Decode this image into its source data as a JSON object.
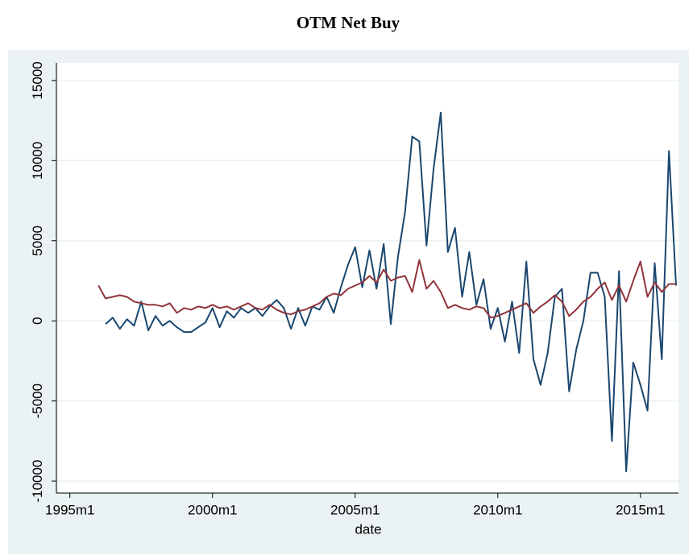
{
  "chart_data": {
    "type": "line",
    "title": "OTM Net Buy",
    "xlabel": "date",
    "x": [
      432,
      435,
      438,
      441,
      444,
      447,
      450,
      453,
      456,
      459,
      462,
      465,
      468,
      471,
      474,
      477,
      480,
      483,
      486,
      489,
      492,
      495,
      498,
      501,
      504,
      507,
      510,
      513,
      516,
      519,
      522,
      525,
      528,
      531,
      534,
      537,
      540,
      543,
      546,
      549,
      552,
      555,
      558,
      561,
      564,
      567,
      570,
      573,
      576,
      579,
      582,
      585,
      588,
      591,
      594,
      597,
      600,
      603,
      606,
      609,
      612,
      615,
      618,
      621,
      624,
      627,
      630,
      633,
      636,
      639,
      642,
      645,
      648,
      651,
      654,
      657,
      660,
      663,
      666,
      669,
      672,
      675
    ],
    "series": [
      {
        "color": "#1a476f",
        "values": [
          null,
          -200,
          200,
          -500,
          100,
          -300,
          1200,
          -600,
          300,
          -300,
          0,
          -400,
          -700,
          -700,
          -400,
          -100,
          800,
          -400,
          600,
          200,
          800,
          500,
          800,
          300,
          900,
          1300,
          800,
          -500,
          800,
          -300,
          900,
          700,
          1500,
          500,
          2100,
          3500,
          4600,
          2100,
          4400,
          2000,
          4800,
          -200,
          4000,
          6800,
          11500,
          11200,
          4700,
          9500,
          13000,
          4300,
          5800,
          1500,
          4300,
          1000,
          2600,
          -500,
          800,
          -1300,
          1200,
          -2000,
          3700,
          -2400,
          -4000,
          -2000,
          1500,
          2000,
          -4400,
          -1800,
          0,
          3000,
          3000,
          1500,
          -7500,
          3100,
          -9400,
          -2600,
          -4000,
          -5600,
          3600,
          -2400,
          10600,
          2200
        ]
      },
      {
        "color": "#90353b",
        "values": [
          2200,
          1400,
          1500,
          1600,
          1500,
          1200,
          1100,
          1000,
          1000,
          900,
          1100,
          500,
          800,
          700,
          900,
          800,
          1000,
          800,
          900,
          700,
          900,
          1100,
          800,
          700,
          1000,
          700,
          500,
          400,
          600,
          700,
          900,
          1100,
          1500,
          1700,
          1600,
          2000,
          2200,
          2400,
          2800,
          2400,
          3200,
          2500,
          2700,
          2800,
          1800,
          3800,
          2000,
          2500,
          1800,
          800,
          1000,
          800,
          700,
          900,
          800,
          200,
          300,
          500,
          700,
          900,
          1100,
          500,
          900,
          1200,
          1600,
          1200,
          300,
          700,
          1200,
          1500,
          2000,
          2400,
          1300,
          2200,
          1200,
          2500,
          3700,
          1500,
          2400,
          1800,
          2300,
          2300
        ]
      }
    ],
    "xlim": [
      415,
      676
    ],
    "xticks": [
      {
        "value": 420,
        "label": "1995m1"
      },
      {
        "value": 480,
        "label": "2000m1"
      },
      {
        "value": 540,
        "label": "2005m1"
      },
      {
        "value": 600,
        "label": "2010m1"
      },
      {
        "value": 660,
        "label": "2015m1"
      }
    ],
    "ylim": [
      -10650,
      16100
    ],
    "yticks": [
      -10000,
      -5000,
      0,
      5000,
      10000,
      15000
    ],
    "grid": true
  }
}
